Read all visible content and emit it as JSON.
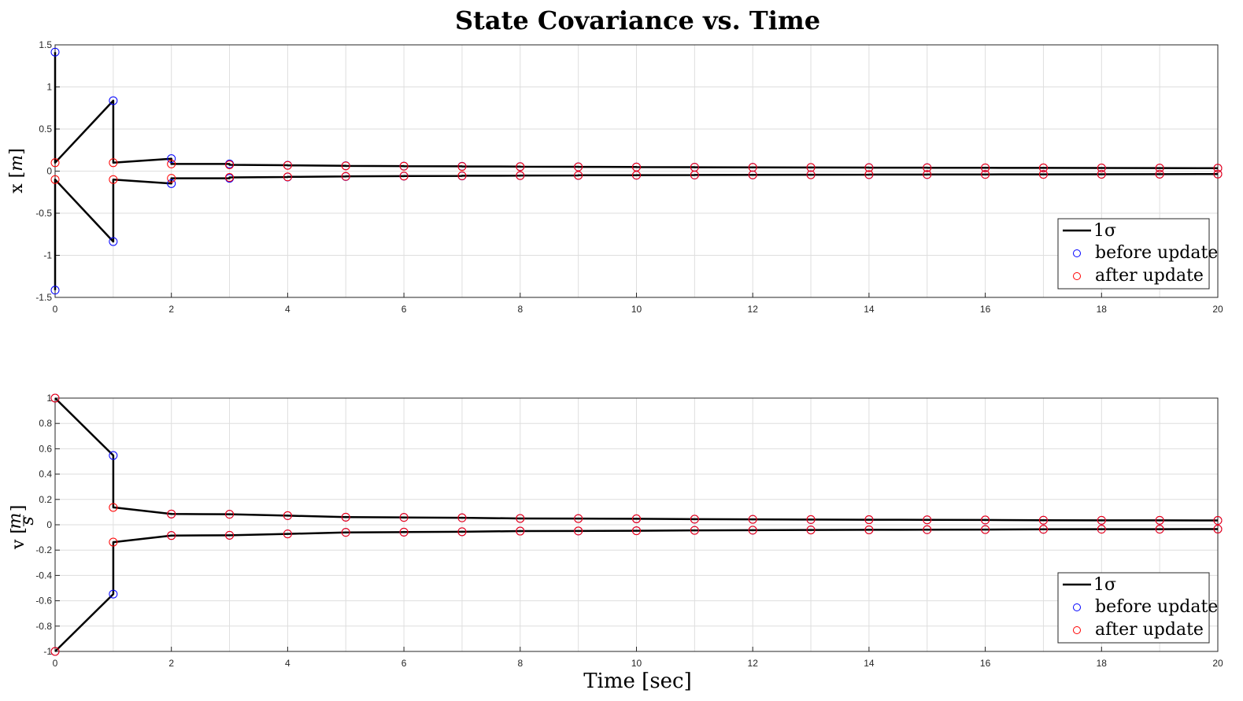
{
  "title": "State Covariance vs. Time",
  "xlabel": "Time [sec]",
  "legend": {
    "line": "1σ",
    "before": "before update",
    "after": "after update"
  },
  "colors": {
    "line": "#000000",
    "before": "#0000ff",
    "after": "#ff0000",
    "grid": "#dedede"
  },
  "chart_data": [
    {
      "type": "line",
      "title": "State Covariance vs. Time",
      "ylabel": "x [m]",
      "ylabel_plain": "x [",
      "ylabel_unit": "m",
      "ylabel_close": "]",
      "xlim": [
        0,
        20
      ],
      "ylim": [
        -1.5,
        1.5
      ],
      "xticks": [
        0,
        2,
        4,
        6,
        8,
        10,
        12,
        14,
        16,
        18,
        20
      ],
      "yticks": [
        -1.5,
        -1,
        -0.5,
        0,
        0.5,
        1,
        1.5
      ],
      "ytick_labels": [
        "-1.5",
        "-1",
        "-0.5",
        "0",
        "0.5",
        "1",
        "1.5"
      ],
      "grid": true,
      "legend_position": "lower-right",
      "t": [
        0,
        1,
        2,
        3,
        4,
        5,
        6,
        7,
        8,
        9,
        10,
        11,
        12,
        13,
        14,
        15,
        16,
        17,
        18,
        19,
        20
      ],
      "before_update": [
        1.414,
        0.837,
        0.148,
        0.085,
        0.07,
        0.064,
        0.06,
        0.057,
        0.054,
        0.051,
        0.049,
        0.047,
        0.045,
        0.043,
        0.042,
        0.041,
        0.039,
        0.038,
        0.037,
        0.036,
        0.035
      ],
      "after_update": [
        0.1,
        0.1,
        0.085,
        0.075,
        0.068,
        0.062,
        0.058,
        0.055,
        0.052,
        0.05,
        0.048,
        0.046,
        0.044,
        0.043,
        0.041,
        0.04,
        0.039,
        0.038,
        0.037,
        0.036,
        0.035
      ],
      "series": [
        {
          "name": "1σ"
        },
        {
          "name": "before update"
        },
        {
          "name": "after update"
        }
      ]
    },
    {
      "type": "line",
      "ylabel": "v [m/s]",
      "ylabel_plain": "v [",
      "ylabel_num": "m",
      "ylabel_den": "s",
      "ylabel_close": "]",
      "xlabel": "Time [sec]",
      "xlim": [
        0,
        20
      ],
      "ylim": [
        -1,
        1
      ],
      "xticks": [
        0,
        2,
        4,
        6,
        8,
        10,
        12,
        14,
        16,
        18,
        20
      ],
      "yticks": [
        -1,
        -0.8,
        -0.6,
        -0.4,
        -0.2,
        0,
        0.2,
        0.4,
        0.6,
        0.8,
        1
      ],
      "ytick_labels": [
        "-1",
        "-0.8",
        "-0.6",
        "-0.4",
        "-0.2",
        "0",
        "0.2",
        "0.4",
        "0.6",
        "0.8",
        "1"
      ],
      "grid": true,
      "legend_position": "lower-right",
      "t": [
        0,
        1,
        2,
        3,
        4,
        5,
        6,
        7,
        8,
        9,
        10,
        11,
        12,
        13,
        14,
        15,
        16,
        17,
        18,
        19,
        20
      ],
      "before_update": [
        1.0,
        0.547,
        0.085,
        0.083,
        0.072,
        0.06,
        0.058,
        0.055,
        0.05,
        0.049,
        0.047,
        0.044,
        0.043,
        0.041,
        0.04,
        0.039,
        0.038,
        0.036,
        0.035,
        0.035,
        0.034
      ],
      "after_update": [
        1.0,
        0.137,
        0.085,
        0.083,
        0.072,
        0.06,
        0.058,
        0.055,
        0.05,
        0.049,
        0.047,
        0.044,
        0.043,
        0.041,
        0.04,
        0.039,
        0.038,
        0.036,
        0.035,
        0.035,
        0.034
      ],
      "series": [
        {
          "name": "1σ"
        },
        {
          "name": "before update"
        },
        {
          "name": "after update"
        }
      ]
    }
  ]
}
